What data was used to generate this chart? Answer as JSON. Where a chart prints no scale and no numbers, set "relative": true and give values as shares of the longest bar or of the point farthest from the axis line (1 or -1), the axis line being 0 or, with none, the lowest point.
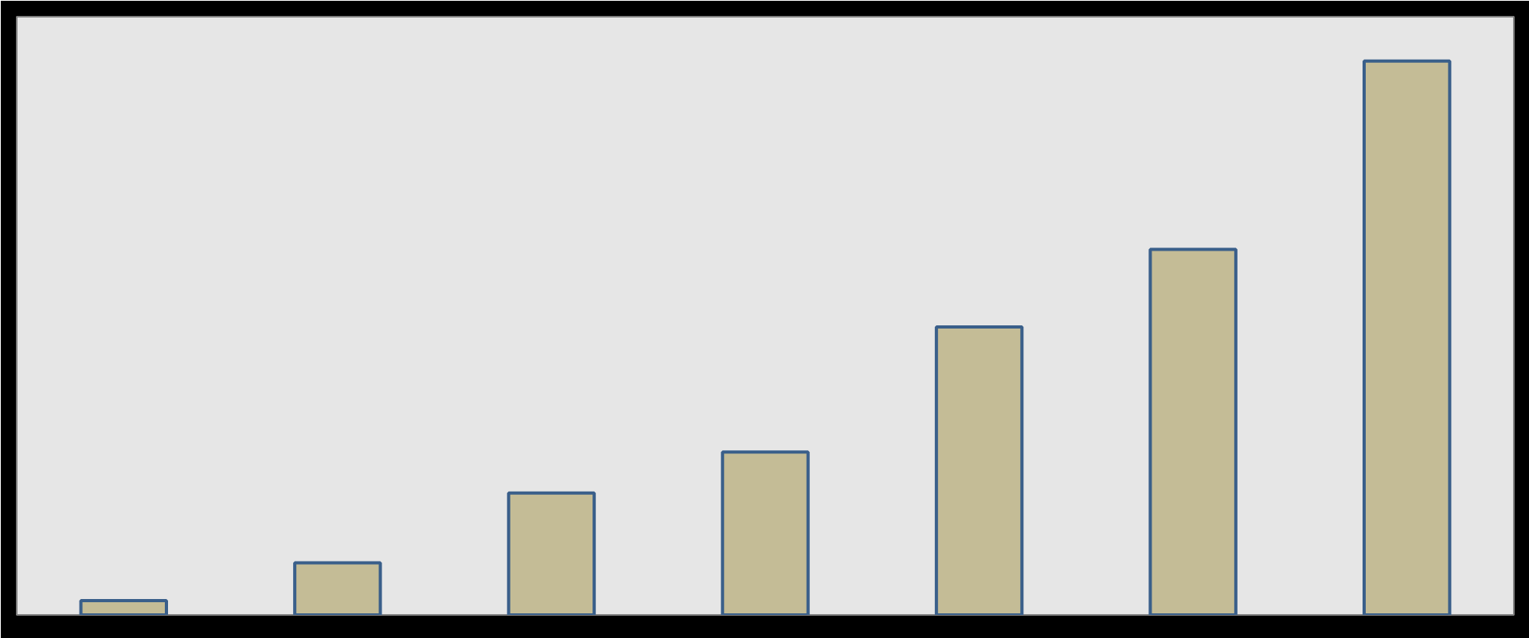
{
  "chart_data": {
    "type": "bar",
    "relative": true,
    "categories": [
      null,
      null,
      null,
      null,
      null,
      null,
      null
    ],
    "values": [
      0.026,
      0.094,
      0.22,
      0.294,
      0.52,
      0.66,
      1
    ],
    "color": "#c4bc96"
  }
}
